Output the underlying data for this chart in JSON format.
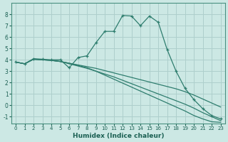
{
  "xlabel": "Humidex (Indice chaleur)",
  "ylabel": "",
  "bg_color": "#cce8e4",
  "grid_color": "#aecfcc",
  "line_color": "#2e7d6e",
  "xlim": [
    -0.5,
    23.5
  ],
  "ylim": [
    -1.6,
    9.0
  ],
  "xticks": [
    0,
    1,
    2,
    3,
    4,
    5,
    6,
    7,
    8,
    9,
    10,
    11,
    12,
    13,
    14,
    15,
    16,
    17,
    18,
    19,
    20,
    21,
    22,
    23
  ],
  "yticks": [
    -1,
    0,
    1,
    2,
    3,
    4,
    5,
    6,
    7,
    8
  ],
  "lines": [
    {
      "x": [
        0,
        1,
        2,
        3,
        4,
        5,
        6,
        7,
        8,
        9,
        10,
        11,
        12,
        13,
        14,
        15,
        16,
        17,
        18,
        19,
        20,
        21,
        22,
        23
      ],
      "y": [
        3.8,
        3.65,
        4.1,
        4.05,
        4.0,
        4.0,
        3.3,
        4.2,
        4.35,
        5.5,
        6.5,
        6.5,
        7.9,
        7.85,
        7.0,
        7.85,
        7.3,
        4.9,
        3.0,
        1.5,
        0.5,
        -0.3,
        -0.9,
        -1.2
      ],
      "marker": "+"
    },
    {
      "x": [
        0,
        1,
        2,
        3,
        4,
        5,
        6,
        7,
        8,
        9,
        10,
        11,
        12,
        13,
        14,
        15,
        16,
        17,
        18,
        19,
        20,
        21,
        22,
        23
      ],
      "y": [
        3.8,
        3.65,
        4.05,
        4.0,
        3.95,
        3.85,
        3.7,
        3.55,
        3.4,
        3.25,
        3.05,
        2.85,
        2.65,
        2.45,
        2.25,
        2.05,
        1.85,
        1.65,
        1.45,
        1.2,
        0.9,
        0.55,
        0.2,
        -0.15
      ],
      "marker": null
    },
    {
      "x": [
        0,
        1,
        2,
        3,
        4,
        5,
        6,
        7,
        8,
        9,
        10,
        11,
        12,
        13,
        14,
        15,
        16,
        17,
        18,
        19,
        20,
        21,
        22,
        23
      ],
      "y": [
        3.8,
        3.65,
        4.05,
        4.0,
        3.95,
        3.85,
        3.65,
        3.45,
        3.25,
        3.0,
        2.75,
        2.5,
        2.2,
        1.9,
        1.6,
        1.3,
        1.0,
        0.7,
        0.4,
        0.1,
        -0.25,
        -0.65,
        -1.0,
        -1.35
      ],
      "marker": null
    },
    {
      "x": [
        0,
        1,
        2,
        3,
        4,
        5,
        6,
        7,
        8,
        9,
        10,
        11,
        12,
        13,
        14,
        15,
        16,
        17,
        18,
        19,
        20,
        21,
        22,
        23
      ],
      "y": [
        3.8,
        3.65,
        4.05,
        4.0,
        3.95,
        3.85,
        3.7,
        3.5,
        3.3,
        3.0,
        2.65,
        2.3,
        1.95,
        1.6,
        1.25,
        0.9,
        0.55,
        0.2,
        -0.15,
        -0.5,
        -0.9,
        -1.2,
        -1.45,
        -1.5
      ],
      "marker": null
    }
  ]
}
